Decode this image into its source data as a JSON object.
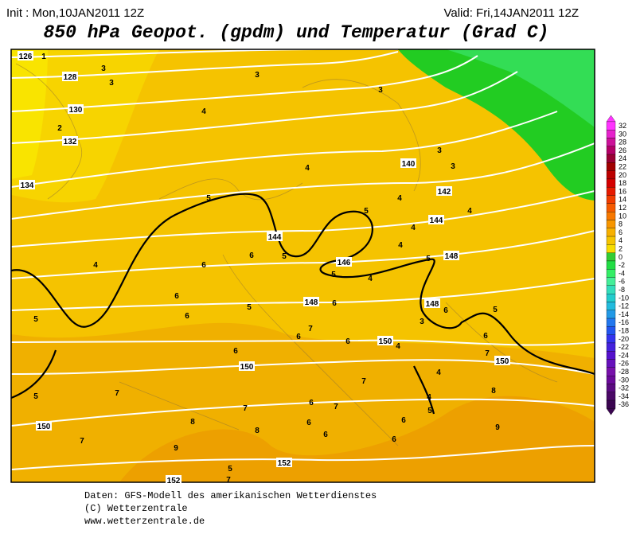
{
  "header": {
    "init": "Init : Mon,10JAN2011 12Z",
    "valid": "Valid: Fri,14JAN2011 12Z",
    "title": "850 hPa Geopot. (gpdm) und Temperatur (Grad C)"
  },
  "map": {
    "geopotential_labels": [
      126,
      128,
      130,
      132,
      134,
      140,
      142,
      144,
      144,
      146,
      148,
      148,
      148,
      150,
      150,
      150,
      150,
      152,
      152
    ],
    "temperature_labels": [
      1,
      3,
      3,
      3,
      3,
      2,
      4,
      4,
      3,
      3,
      4,
      4,
      4,
      4,
      5,
      5,
      5,
      5,
      5,
      4,
      6,
      6,
      4,
      5,
      6,
      6,
      6,
      6,
      3,
      5,
      5,
      7,
      6,
      6,
      4,
      6,
      7,
      6,
      4,
      7,
      5,
      7,
      8,
      4,
      5,
      7,
      6,
      7,
      8,
      6,
      6,
      9,
      8,
      6,
      6,
      9,
      7,
      5,
      7
    ]
  },
  "colorbar": {
    "labels": [
      32,
      30,
      28,
      26,
      24,
      22,
      20,
      18,
      16,
      14,
      12,
      10,
      8,
      6,
      4,
      2,
      0,
      -2,
      -4,
      -6,
      -8,
      -10,
      -12,
      -14,
      -16,
      -18,
      -20,
      -22,
      -24,
      -26,
      -28,
      -30,
      -32,
      -34,
      -36
    ],
    "colors": [
      "#ff33ff",
      "#e622cc",
      "#cc1199",
      "#b30066",
      "#990033",
      "#a00000",
      "#bb0000",
      "#d40000",
      "#e61a00",
      "#f03c00",
      "#f55a00",
      "#f77800",
      "#f79600",
      "#f7b000",
      "#f5c400",
      "#f7dc00",
      "#33cc33",
      "#22dd44",
      "#33ee66",
      "#44ee99",
      "#33ddbb",
      "#22cccc",
      "#22bbdd",
      "#2299e6",
      "#2277ee",
      "#2255ee",
      "#3333ee",
      "#4422dd",
      "#5511cc",
      "#6611bb",
      "#7711aa",
      "#6a0a99",
      "#5a0a80",
      "#4a0866",
      "#3a0550"
    ]
  },
  "footer": {
    "lines": [
      "Daten: GFS-Modell des amerikanischen Wetterdienstes",
      "(C) Wetterzentrale",
      "www.wetterzentrale.de"
    ]
  }
}
